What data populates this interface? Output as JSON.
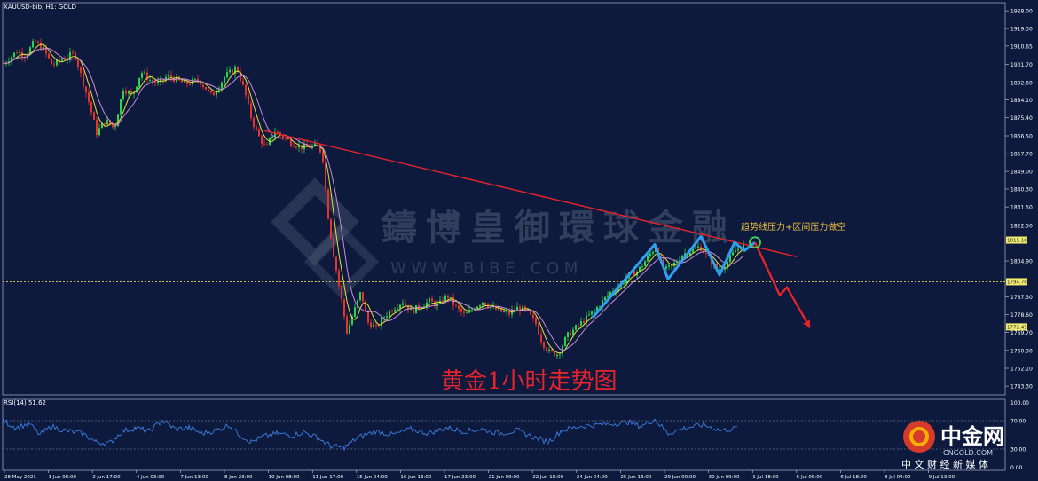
{
  "window": {
    "symbol_label": "XAUUSD-bib, H1: GOLD",
    "rsi_label": "RSI(14) 51.62"
  },
  "watermark": {
    "text": "鑄博皇御環球金融",
    "url": "W W W . B I B E . C O M"
  },
  "annotations": {
    "title": "黄金1小时走势图",
    "note": "趋势线压力+区间压力做空"
  },
  "logo": {
    "name": "中金网",
    "domain": "CNGOLD.COM",
    "tagline": "中 文 财 经 新 媒 体"
  },
  "colors": {
    "background": "#0d1a3d",
    "grid": "#ffffff",
    "bull": "#29d64a",
    "bear": "#e8332b",
    "ma_fast": "#e6df3a",
    "ma_slow": "#c98bd6",
    "trendline": "#e8232b",
    "pattern": "#2e9ef0",
    "forecast": "#e8232b",
    "level_line": "#e6d94a",
    "rsi": "#3a7fe0",
    "note": "#f0c040",
    "title": "#e8232b"
  },
  "chart_data": [
    {
      "type": "candlestick",
      "title": "黄金1小时走势图",
      "x_ticks": [
        "28 May 2021",
        "1 Jun 08:00",
        "2 Jun 17:00",
        "4 Jun 03:00",
        "7 Jun 13:00",
        "8 Jun 23:00",
        "10 Jun 08:00",
        "11 Jun 17:00",
        "15 Jun 04:00",
        "16 Jun 13:00",
        "17 Jun 23:00",
        "21 Jun 09:00",
        "22 Jun 18:00",
        "24 Jun 04:00",
        "25 Jun 13:00",
        "29 Jun 00:00",
        "30 Jun 09:00",
        "1 Jul 18:00",
        "5 Jul 05:00",
        "6 Jul 18:00",
        "8 Jul 04:00",
        "9 Jul 13:00"
      ],
      "y_ticks": [
        "1928.00",
        "1919.30",
        "1910.65",
        "1901.70",
        "1892.60",
        "1884.10",
        "1875.40",
        "1866.50",
        "1857.70",
        "1849.00",
        "1840.30",
        "1831.50",
        "1822.50",
        "1804.90",
        "1787.30",
        "1778.60",
        "1769.70",
        "1760.90",
        "1752.10",
        "1743.30"
      ],
      "ylim": [
        1739,
        1932
      ],
      "price_path": [
        [
          0,
          1902
        ],
        [
          15,
          1908
        ],
        [
          25,
          1906
        ],
        [
          35,
          1913
        ],
        [
          45,
          1909
        ],
        [
          55,
          1901
        ],
        [
          65,
          1904
        ],
        [
          80,
          1907
        ],
        [
          95,
          1885
        ],
        [
          105,
          1868
        ],
        [
          115,
          1874
        ],
        [
          125,
          1870
        ],
        [
          135,
          1890
        ],
        [
          145,
          1886
        ],
        [
          155,
          1898
        ],
        [
          165,
          1894
        ],
        [
          175,
          1892
        ],
        [
          185,
          1896
        ],
        [
          195,
          1894
        ],
        [
          205,
          1892
        ],
        [
          220,
          1894
        ],
        [
          235,
          1886
        ],
        [
          250,
          1896
        ],
        [
          263,
          1900
        ],
        [
          272,
          1888
        ],
        [
          280,
          1874
        ],
        [
          288,
          1866
        ],
        [
          296,
          1860
        ],
        [
          305,
          1869
        ],
        [
          315,
          1866
        ],
        [
          325,
          1863
        ],
        [
          335,
          1861
        ],
        [
          345,
          1861
        ],
        [
          355,
          1862
        ],
        [
          360,
          1855
        ],
        [
          365,
          1830
        ],
        [
          372,
          1808
        ],
        [
          380,
          1788
        ],
        [
          387,
          1770
        ],
        [
          395,
          1780
        ],
        [
          403,
          1790
        ],
        [
          410,
          1775
        ],
        [
          420,
          1772
        ],
        [
          430,
          1778
        ],
        [
          440,
          1782
        ],
        [
          450,
          1785
        ],
        [
          460,
          1780
        ],
        [
          470,
          1783
        ],
        [
          480,
          1785
        ],
        [
          490,
          1783
        ],
        [
          500,
          1788
        ],
        [
          510,
          1782
        ],
        [
          520,
          1778
        ],
        [
          530,
          1782
        ],
        [
          540,
          1785
        ],
        [
          550,
          1782
        ],
        [
          560,
          1780
        ],
        [
          570,
          1779
        ],
        [
          580,
          1782
        ],
        [
          590,
          1780
        ],
        [
          600,
          1774
        ],
        [
          607,
          1765
        ],
        [
          615,
          1760
        ],
        [
          625,
          1759
        ],
        [
          635,
          1768
        ],
        [
          645,
          1772
        ],
        [
          655,
          1776
        ],
        [
          665,
          1780
        ],
        [
          675,
          1785
        ],
        [
          685,
          1790
        ],
        [
          695,
          1793
        ],
        [
          705,
          1798
        ],
        [
          715,
          1800
        ],
        [
          725,
          1806
        ],
        [
          735,
          1812
        ],
        [
          745,
          1800
        ],
        [
          755,
          1803
        ],
        [
          765,
          1808
        ],
        [
          775,
          1810
        ],
        [
          785,
          1812
        ],
        [
          795,
          1806
        ],
        [
          805,
          1800
        ],
        [
          815,
          1804
        ],
        [
          825,
          1810
        ],
        [
          835,
          1813
        ]
      ],
      "rsi_path": [
        [
          0,
          70
        ],
        [
          15,
          60
        ],
        [
          30,
          66
        ],
        [
          42,
          50
        ],
        [
          55,
          62
        ],
        [
          70,
          56
        ],
        [
          90,
          52
        ],
        [
          105,
          40
        ],
        [
          120,
          38
        ],
        [
          135,
          55
        ],
        [
          150,
          60
        ],
        [
          165,
          55
        ],
        [
          180,
          70
        ],
        [
          195,
          58
        ],
        [
          210,
          60
        ],
        [
          225,
          52
        ],
        [
          240,
          56
        ],
        [
          255,
          64
        ],
        [
          265,
          52
        ],
        [
          280,
          40
        ],
        [
          295,
          48
        ],
        [
          310,
          52
        ],
        [
          325,
          49
        ],
        [
          340,
          54
        ],
        [
          355,
          46
        ],
        [
          370,
          34
        ],
        [
          385,
          32
        ],
        [
          400,
          46
        ],
        [
          420,
          55
        ],
        [
          440,
          50
        ],
        [
          460,
          58
        ],
        [
          480,
          52
        ],
        [
          500,
          60
        ],
        [
          520,
          55
        ],
        [
          540,
          58
        ],
        [
          560,
          52
        ],
        [
          580,
          56
        ],
        [
          600,
          46
        ],
        [
          615,
          40
        ],
        [
          630,
          56
        ],
        [
          650,
          62
        ],
        [
          670,
          64
        ],
        [
          690,
          66
        ],
        [
          705,
          68
        ],
        [
          720,
          62
        ],
        [
          735,
          72
        ],
        [
          750,
          52
        ],
        [
          770,
          60
        ],
        [
          790,
          64
        ],
        [
          810,
          56
        ],
        [
          830,
          60
        ]
      ],
      "rsi_ylim": [
        0,
        100
      ],
      "rsi_ticks": [
        "100.00",
        "70.00",
        "30.00",
        "0.00"
      ]
    },
    {
      "type": "line",
      "horizontal_levels": [
        {
          "price": 1815.18,
          "label": "1815.18"
        },
        {
          "price": 1794.7,
          "label": "1794.70"
        },
        {
          "price": 1772.45,
          "label": "1772.45"
        }
      ],
      "trendline": {
        "from": [
          295,
          1869
        ],
        "to": [
          895,
          1807
        ]
      },
      "zigzag": [
        [
          665,
          1777
        ],
        [
          735,
          1813
        ],
        [
          750,
          1796
        ],
        [
          787,
          1817
        ],
        [
          808,
          1798
        ],
        [
          825,
          1814
        ],
        [
          836,
          1810
        ],
        [
          848,
          1814
        ]
      ],
      "forecast": [
        [
          848,
          1814
        ],
        [
          876,
          1788
        ],
        [
          884,
          1792
        ],
        [
          910,
          1772
        ]
      ],
      "marker": [
        848,
        1814
      ]
    }
  ]
}
